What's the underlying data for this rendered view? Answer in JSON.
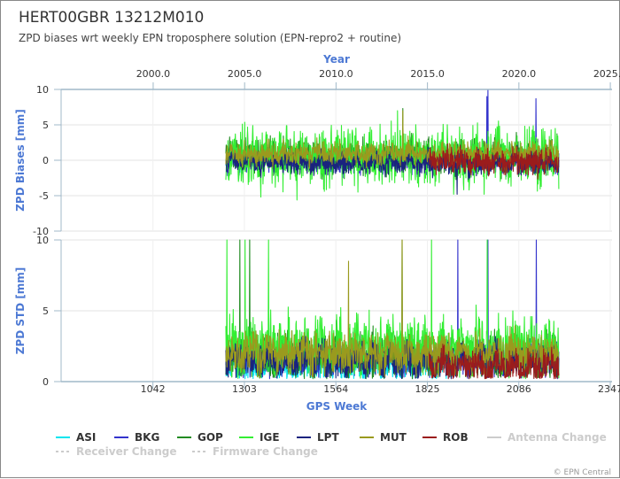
{
  "header": {
    "title": "HERT00GBR 13212M010",
    "subtitle": "ZPD biases wrt weekly EPN troposphere solution (EPN-repro2 + routine)"
  },
  "credit": "© EPN Central",
  "chart_data": [
    {
      "type": "line",
      "panel": "top",
      "ylabel": "ZPD Biases [mm]",
      "x2label": "Year",
      "ylim": [
        -10,
        10
      ],
      "yticks": [
        "10",
        "5",
        "0",
        "-5",
        "-10"
      ],
      "ytick_values": [
        10,
        5,
        0,
        -5,
        -10
      ],
      "year_ticks": [
        "2000.0",
        "2005.0",
        "2010.0",
        "2015.0",
        "2020.0",
        "2025.0"
      ],
      "year_tick_values": [
        2000,
        2005,
        2010,
        2015,
        2020,
        2025
      ],
      "x_range_weeks": [
        780,
        2352
      ],
      "grid": true,
      "series": [
        {
          "name": "ASI",
          "color": "#00e5ee",
          "x_range": [
            1250,
            2200
          ],
          "level": 0.2,
          "amp": 0.6,
          "spikes": []
        },
        {
          "name": "BKG",
          "color": "#3333cc",
          "x_range": [
            1250,
            2200
          ],
          "level": -0.3,
          "amp": 0.8,
          "spikes": [
            [
              1998,
              10
            ],
            [
              1995,
              9
            ],
            [
              2135,
              8.7
            ]
          ]
        },
        {
          "name": "GOP",
          "color": "#228b22",
          "x_range": [
            1250,
            2200
          ],
          "level": 0.5,
          "amp": 1.2,
          "spikes": [
            [
              1755,
              7.3
            ]
          ]
        },
        {
          "name": "IGE",
          "color": "#33ee33",
          "x_range": [
            1250,
            2200
          ],
          "level": 0.5,
          "amp": 2.0,
          "spikes": [
            [
              1350,
              -5.2
            ],
            [
              1740,
              7.0
            ],
            [
              1900,
              -4.8
            ]
          ]
        },
        {
          "name": "LPT",
          "color": "#1a237e",
          "x_range": [
            1250,
            2200
          ],
          "level": -0.3,
          "amp": 0.8,
          "spikes": [
            [
              1910,
              -4.8
            ]
          ]
        },
        {
          "name": "MUT",
          "color": "#9a9a1e",
          "x_range": [
            1250,
            2200
          ],
          "level": 1.0,
          "amp": 0.8,
          "spikes": [
            [
              1755,
              7.0
            ]
          ]
        },
        {
          "name": "ROB",
          "color": "#9b1c1c",
          "x_range": [
            1830,
            2200
          ],
          "level": -0.2,
          "amp": 0.9,
          "spikes": []
        }
      ]
    },
    {
      "type": "line",
      "panel": "bottom",
      "ylabel": "ZPD STD [mm]",
      "xlabel": "GPS Week",
      "ylim": [
        0,
        10
      ],
      "yticks": [
        "10",
        "5",
        "0"
      ],
      "ytick_values": [
        10,
        5,
        0
      ],
      "week_ticks": [
        "1042",
        "1303",
        "1564",
        "1825",
        "2086",
        "2347"
      ],
      "week_tick_values": [
        1042,
        1303,
        1564,
        1825,
        2086,
        2347
      ],
      "x_range_weeks": [
        780,
        2352
      ],
      "grid": true,
      "series": [
        {
          "name": "ASI",
          "color": "#00e5ee",
          "x_range": [
            1250,
            1900
          ],
          "level": 1.0,
          "amp": 0.5,
          "spikes": []
        },
        {
          "name": "BKG",
          "color": "#3333cc",
          "x_range": [
            1250,
            2200
          ],
          "level": 1.5,
          "amp": 0.6,
          "spikes": [
            [
              1912,
              10
            ],
            [
              1998,
              10
            ],
            [
              2136,
              10
            ]
          ]
        },
        {
          "name": "GOP",
          "color": "#228b22",
          "x_range": [
            1250,
            2200
          ],
          "level": 1.8,
          "amp": 0.8,
          "spikes": [
            [
              1290,
              10
            ],
            [
              1318,
              10
            ],
            [
              1753,
              10
            ]
          ]
        },
        {
          "name": "IGE",
          "color": "#33ee33",
          "x_range": [
            1250,
            2200
          ],
          "level": 2.5,
          "amp": 1.0,
          "spikes": [
            [
              1253,
              10
            ],
            [
              1305,
              10
            ],
            [
              1372,
              10
            ],
            [
              1837,
              10
            ],
            [
              1996,
              10
            ],
            [
              2069,
              5.0
            ]
          ]
        },
        {
          "name": "LPT",
          "color": "#1a237e",
          "x_range": [
            1250,
            2200
          ],
          "level": 1.5,
          "amp": 0.6,
          "spikes": []
        },
        {
          "name": "MUT",
          "color": "#9a9a1e",
          "x_range": [
            1250,
            2200
          ],
          "level": 2.0,
          "amp": 0.7,
          "spikes": [
            [
              1600,
              8.5
            ],
            [
              1753,
              10
            ],
            [
              2112,
              3.3
            ],
            [
              2160,
              3.0
            ]
          ]
        },
        {
          "name": "ROB",
          "color": "#9b1c1c",
          "x_range": [
            1830,
            2200
          ],
          "level": 1.0,
          "amp": 0.6,
          "spikes": []
        }
      ]
    }
  ],
  "legend": {
    "placement": "bottom",
    "items": [
      {
        "label": "ASI",
        "color": "#00e5ee",
        "style": "solid",
        "muted": false
      },
      {
        "label": "BKG",
        "color": "#3333cc",
        "style": "solid",
        "muted": false
      },
      {
        "label": "GOP",
        "color": "#228b22",
        "style": "solid",
        "muted": false
      },
      {
        "label": "IGE",
        "color": "#33ee33",
        "style": "solid",
        "muted": false
      },
      {
        "label": "LPT",
        "color": "#1a237e",
        "style": "solid",
        "muted": false
      },
      {
        "label": "MUT",
        "color": "#9a9a1e",
        "style": "solid",
        "muted": false
      },
      {
        "label": "ROB",
        "color": "#9b1c1c",
        "style": "solid",
        "muted": false
      },
      {
        "label": "Antenna Change",
        "color": "#cccccc",
        "style": "solid",
        "muted": true
      },
      {
        "label": "Receiver Change",
        "color": "#cccccc",
        "style": "dashed",
        "muted": true
      },
      {
        "label": "Firmware Change",
        "color": "#cccccc",
        "style": "dashed",
        "muted": true
      }
    ]
  }
}
